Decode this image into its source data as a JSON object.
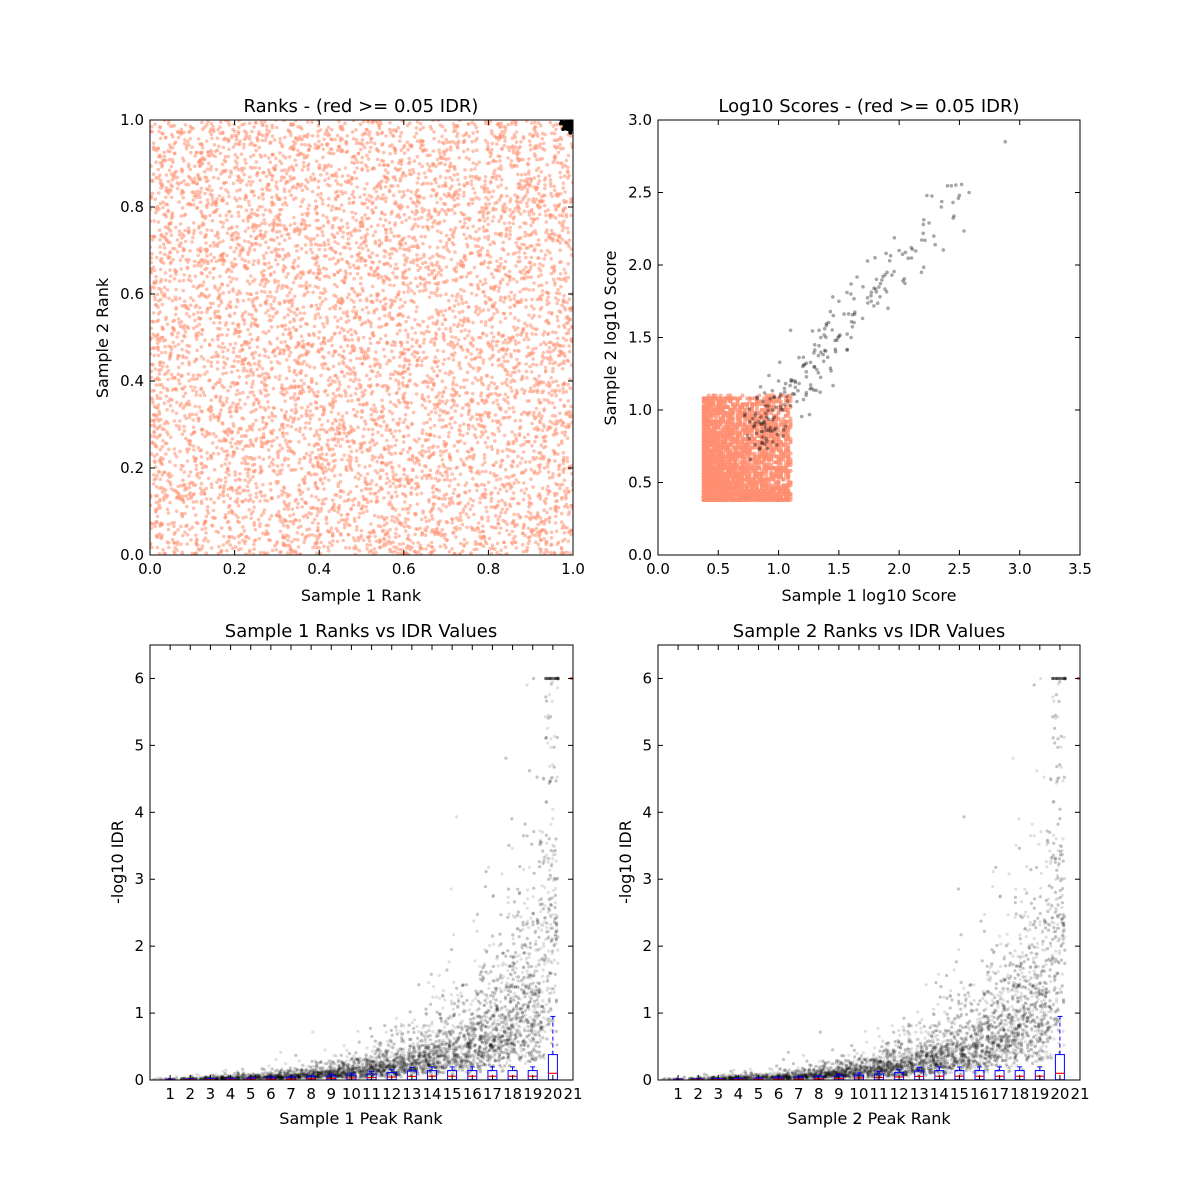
{
  "colors": {
    "fail": "#ff8f70",
    "pass": "#000000",
    "box": "#0000ff",
    "median": "#ff0000"
  },
  "chart_data": [
    {
      "id": "ranks",
      "type": "scatter",
      "title": "Ranks - (red >= 0.05 IDR)",
      "xlabel": "Sample 1 Rank",
      "ylabel": "Sample 2 Rank",
      "xlim": [
        0,
        1
      ],
      "ylim": [
        0,
        1
      ],
      "xticks": [
        "0.0",
        "0.2",
        "0.4",
        "0.6",
        "0.8",
        "1.0"
      ],
      "yticks": [
        "0.0",
        "0.2",
        "0.4",
        "0.6",
        "0.8",
        "1.0"
      ],
      "series": [
        {
          "role": "fail",
          "points": "dense uniform cloud over [0,1] x [0,1]"
        },
        {
          "role": "pass",
          "points": "small cluster near (1.0, 1.0)"
        }
      ]
    },
    {
      "id": "scores",
      "type": "scatter",
      "title": "Log10 Scores - (red >= 0.05 IDR)",
      "xlabel": "Sample 1 log10 Score",
      "ylabel": "Sample 2 log10 Score",
      "xlim": [
        0,
        3.5
      ],
      "ylim": [
        0,
        3.0
      ],
      "xticks": [
        "0.0",
        "0.5",
        "1.0",
        "1.5",
        "2.0",
        "2.5",
        "3.0",
        "3.5"
      ],
      "yticks": [
        "0.0",
        "0.5",
        "1.0",
        "1.5",
        "2.0",
        "2.5",
        "3.0"
      ],
      "series": [
        {
          "role": "fail",
          "x_range": [
            0.38,
            1.1
          ],
          "y_range": [
            0.38,
            1.1
          ]
        },
        {
          "role": "pass",
          "sample_points": [
            [
              2.88,
              2.85
            ],
            [
              2.58,
              2.5
            ],
            [
              2.5,
              2.48
            ],
            [
              2.35,
              2.4
            ],
            [
              2.2,
              2.28
            ],
            [
              2.1,
              2.12
            ],
            [
              2.0,
              2.1
            ],
            [
              1.9,
              1.95
            ],
            [
              1.8,
              2.05
            ],
            [
              1.7,
              1.85
            ],
            [
              1.6,
              1.8
            ],
            [
              1.5,
              1.75
            ],
            [
              1.45,
              1.78
            ],
            [
              1.35,
              1.5
            ],
            [
              1.3,
              1.45
            ],
            [
              1.2,
              1.3
            ],
            [
              1.1,
              1.55
            ],
            [
              1.0,
              1.2
            ],
            [
              0.95,
              1.0
            ],
            [
              0.9,
              0.95
            ]
          ]
        }
      ]
    },
    {
      "id": "s1idr",
      "type": "scatter",
      "title": "Sample 1 Ranks vs IDR Values",
      "xlabel": "Sample 1 Peak Rank",
      "ylabel": "-log10 IDR",
      "xlim": [
        0,
        21
      ],
      "ylim": [
        0,
        6.5
      ],
      "xticks": [
        "1",
        "2",
        "3",
        "4",
        "5",
        "6",
        "7",
        "8",
        "9",
        "10",
        "11",
        "12",
        "13",
        "14",
        "15",
        "16",
        "17",
        "18",
        "19",
        "20",
        "21"
      ],
      "yticks": [
        "0",
        "1",
        "2",
        "3",
        "4",
        "5",
        "6"
      ],
      "curve": {
        "description": "-log10 IDR rises sharply near the highest ranks",
        "max": 6.0
      },
      "box_last_bin": {
        "q1": 0.02,
        "median": 0.1,
        "q3": 0.38,
        "whisker": 0.95
      }
    },
    {
      "id": "s2idr",
      "type": "scatter",
      "title": "Sample 2 Ranks vs IDR Values",
      "xlabel": "Sample 2 Peak Rank",
      "ylabel": "-log10 IDR",
      "xlim": [
        0,
        21
      ],
      "ylim": [
        0,
        6.5
      ],
      "xticks": [
        "1",
        "2",
        "3",
        "4",
        "5",
        "6",
        "7",
        "8",
        "9",
        "10",
        "11",
        "12",
        "13",
        "14",
        "15",
        "16",
        "17",
        "18",
        "19",
        "20",
        "21"
      ],
      "yticks": [
        "0",
        "1",
        "2",
        "3",
        "4",
        "5",
        "6"
      ],
      "curve": {
        "description": "-log10 IDR rises sharply near the highest ranks",
        "max": 6.0
      },
      "box_last_bin": {
        "q1": 0.02,
        "median": 0.1,
        "q3": 0.38,
        "whisker": 0.95
      }
    }
  ]
}
